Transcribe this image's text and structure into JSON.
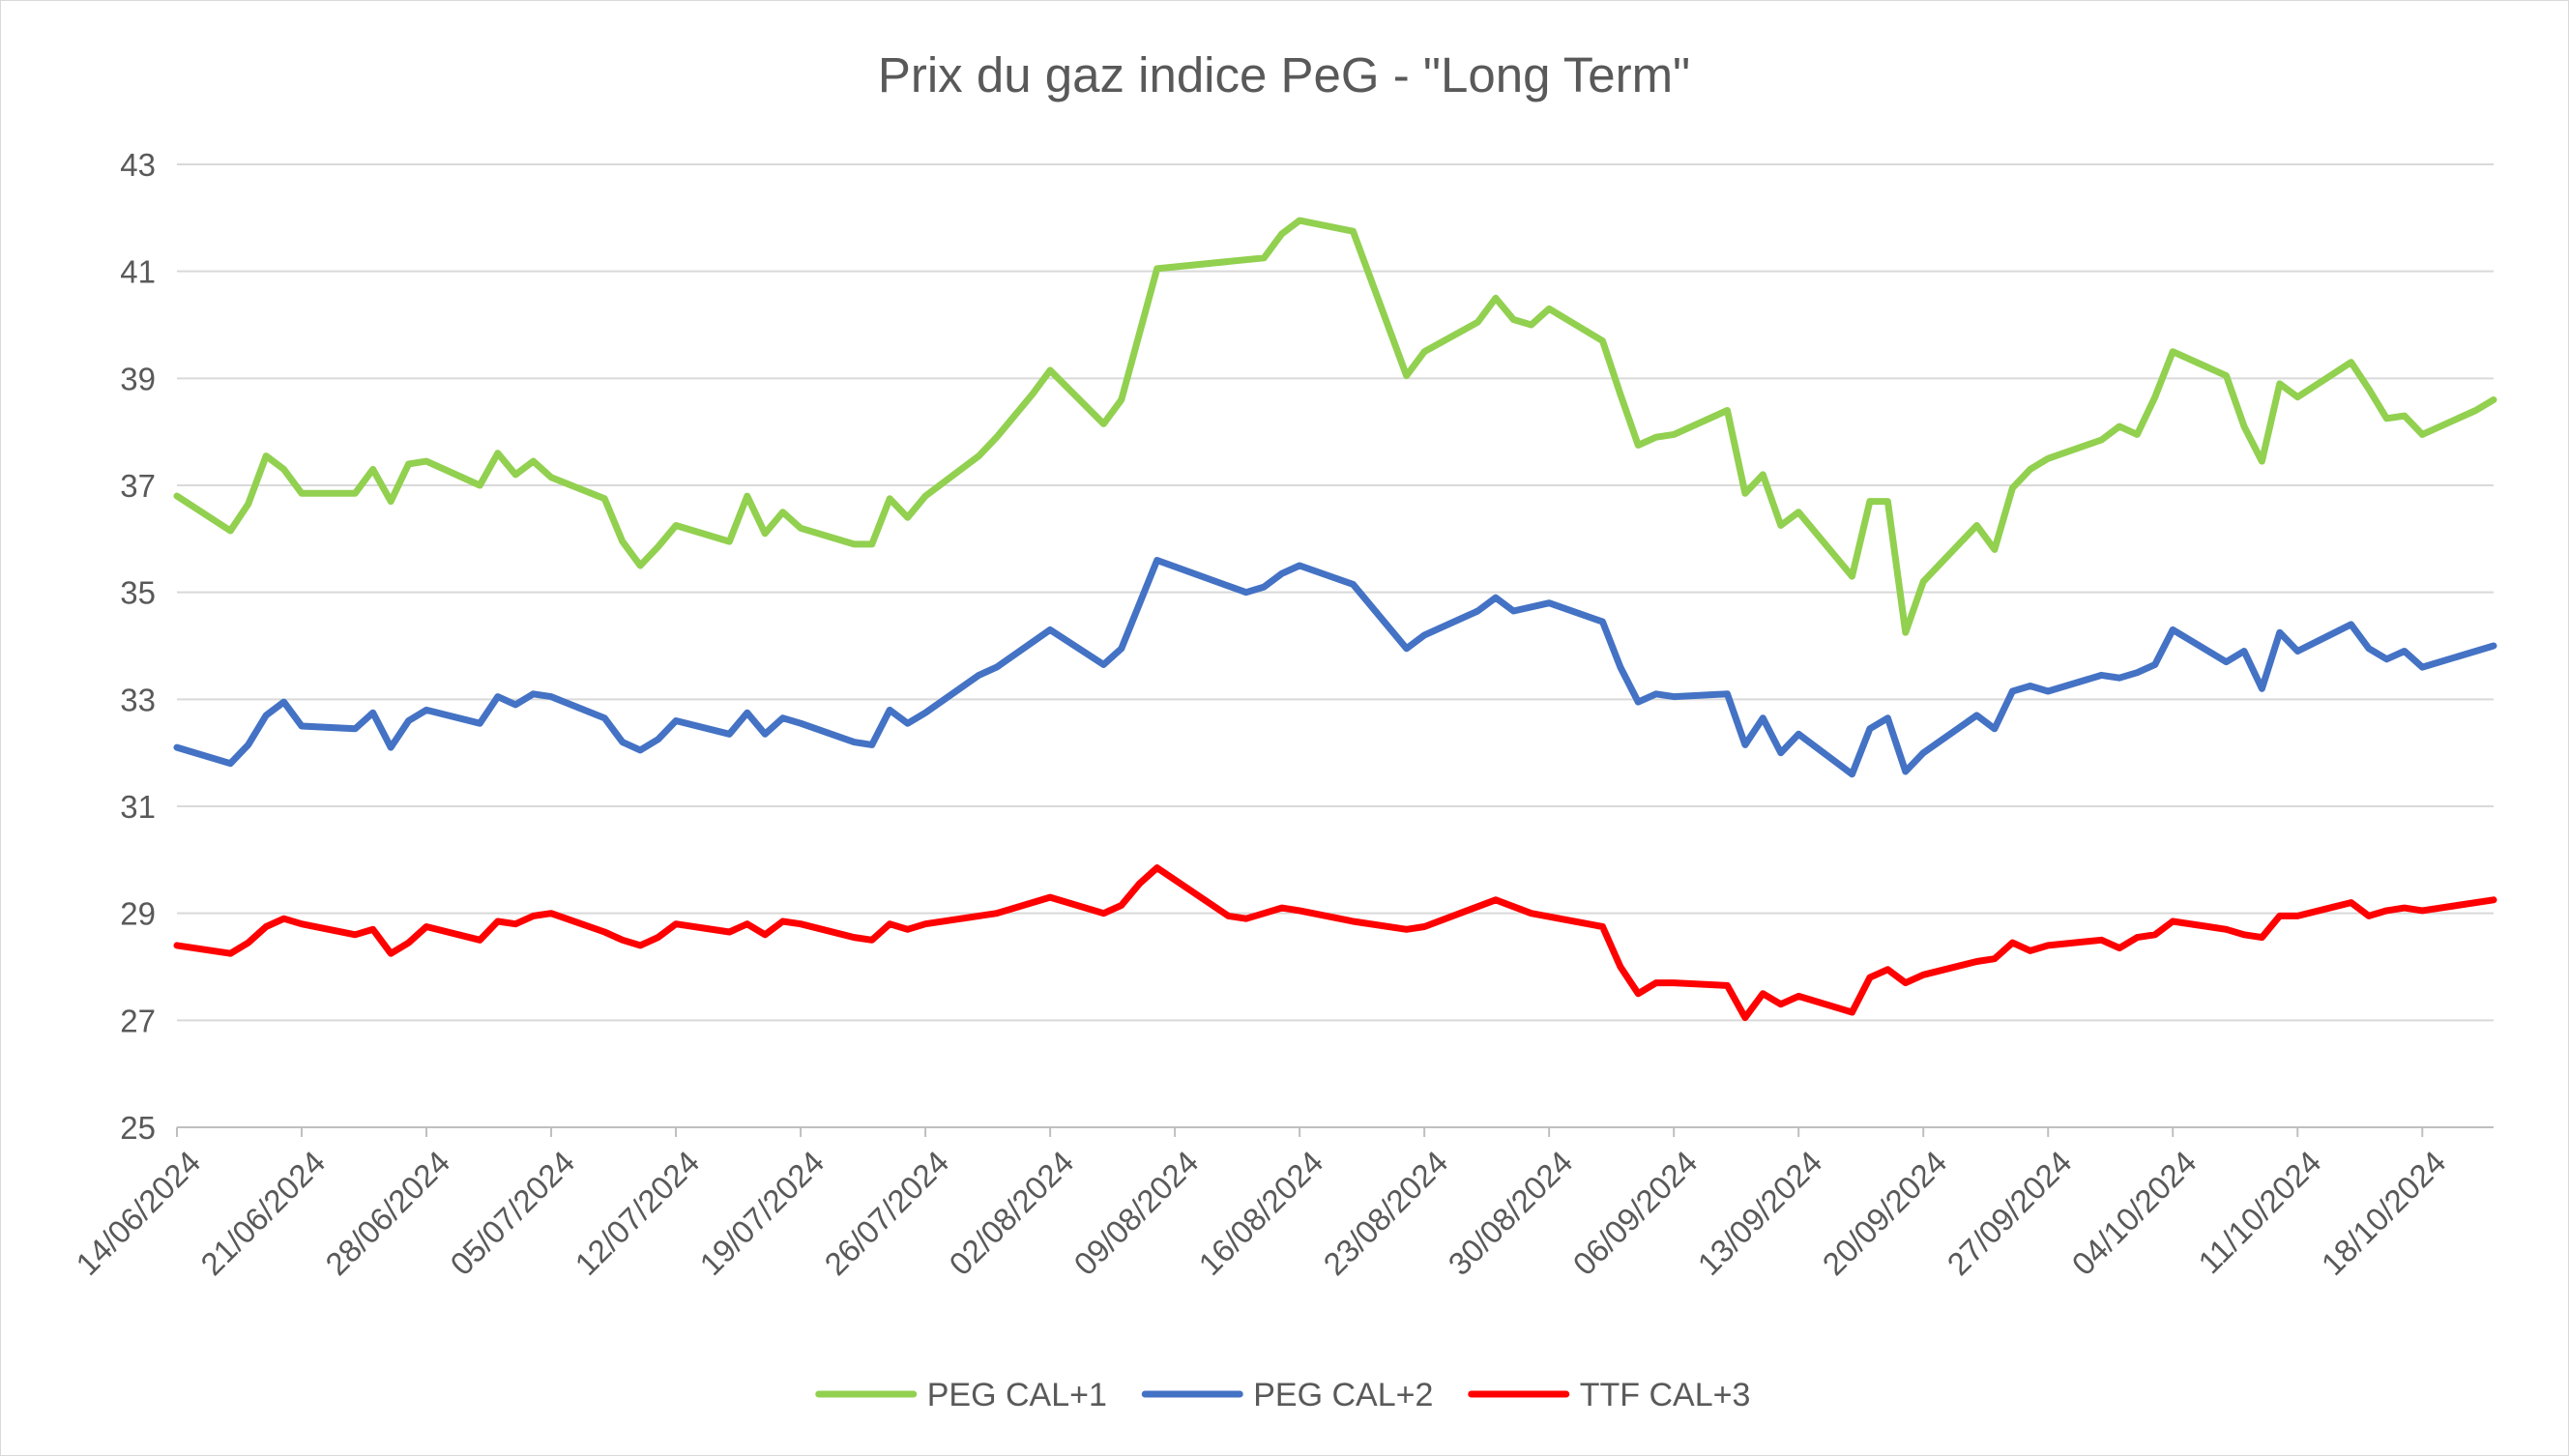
{
  "chart_data": {
    "type": "line",
    "title": "Prix du gaz indice PeG - \"Long Term\"",
    "xlabel": "",
    "ylabel": "",
    "ylim": [
      25,
      43
    ],
    "y_ticks": [
      25,
      27,
      29,
      31,
      33,
      35,
      37,
      39,
      41,
      43
    ],
    "x_ticks": [
      "14/06/2024",
      "21/06/2024",
      "28/06/2024",
      "05/07/2024",
      "12/07/2024",
      "19/07/2024",
      "26/07/2024",
      "02/08/2024",
      "09/08/2024",
      "16/08/2024",
      "23/08/2024",
      "30/08/2024",
      "06/09/2024",
      "13/09/2024",
      "20/09/2024",
      "27/09/2024",
      "04/10/2024",
      "11/10/2024",
      "18/10/2024"
    ],
    "xlim": [
      "14/06/2024",
      "22/10/2024"
    ],
    "grid": true,
    "legend_position": "bottom",
    "series": [
      {
        "name": "PEG CAL+1",
        "color": "#92d050",
        "points": [
          [
            "14/06/2024",
            36.8
          ],
          [
            "17/06/2024",
            36.15
          ],
          [
            "18/06/2024",
            36.65
          ],
          [
            "19/06/2024",
            37.55
          ],
          [
            "20/06/2024",
            37.3
          ],
          [
            "21/06/2024",
            36.85
          ],
          [
            "24/06/2024",
            36.85
          ],
          [
            "25/06/2024",
            37.3
          ],
          [
            "26/06/2024",
            36.7
          ],
          [
            "27/06/2024",
            37.4
          ],
          [
            "28/06/2024",
            37.45
          ],
          [
            "01/07/2024",
            37.0
          ],
          [
            "02/07/2024",
            37.6
          ],
          [
            "03/07/2024",
            37.2
          ],
          [
            "04/07/2024",
            37.45
          ],
          [
            "05/07/2024",
            37.15
          ],
          [
            "08/07/2024",
            36.75
          ],
          [
            "09/07/2024",
            35.95
          ],
          [
            "10/07/2024",
            35.5
          ],
          [
            "11/07/2024",
            35.85
          ],
          [
            "12/07/2024",
            36.25
          ],
          [
            "15/07/2024",
            35.95
          ],
          [
            "16/07/2024",
            36.8
          ],
          [
            "17/07/2024",
            36.1
          ],
          [
            "18/07/2024",
            36.5
          ],
          [
            "19/07/2024",
            36.2
          ],
          [
            "22/07/2024",
            35.9
          ],
          [
            "23/07/2024",
            35.9
          ],
          [
            "24/07/2024",
            36.75
          ],
          [
            "25/07/2024",
            36.4
          ],
          [
            "26/07/2024",
            36.8
          ],
          [
            "29/07/2024",
            37.55
          ],
          [
            "30/07/2024",
            37.9
          ],
          [
            "01/08/2024",
            38.7
          ],
          [
            "02/08/2024",
            39.15
          ],
          [
            "05/08/2024",
            38.15
          ],
          [
            "06/08/2024",
            38.6
          ],
          [
            "08/08/2024",
            41.05
          ],
          [
            "14/08/2024",
            41.25
          ],
          [
            "15/08/2024",
            41.7
          ],
          [
            "16/08/2024",
            41.95
          ],
          [
            "19/08/2024",
            41.75
          ],
          [
            "22/08/2024",
            39.05
          ],
          [
            "23/08/2024",
            39.5
          ],
          [
            "26/08/2024",
            40.05
          ],
          [
            "27/08/2024",
            40.5
          ],
          [
            "28/08/2024",
            40.1
          ],
          [
            "29/08/2024",
            40.0
          ],
          [
            "30/08/2024",
            40.3
          ],
          [
            "02/09/2024",
            39.7
          ],
          [
            "03/09/2024",
            38.7
          ],
          [
            "04/09/2024",
            37.75
          ],
          [
            "05/09/2024",
            37.9
          ],
          [
            "06/09/2024",
            37.95
          ],
          [
            "09/09/2024",
            38.4
          ],
          [
            "10/09/2024",
            36.85
          ],
          [
            "11/09/2024",
            37.2
          ],
          [
            "12/09/2024",
            36.25
          ],
          [
            "13/09/2024",
            36.5
          ],
          [
            "16/09/2024",
            35.3
          ],
          [
            "17/09/2024",
            36.7
          ],
          [
            "18/09/2024",
            36.7
          ],
          [
            "19/09/2024",
            34.25
          ],
          [
            "20/09/2024",
            35.2
          ],
          [
            "23/09/2024",
            36.25
          ],
          [
            "24/09/2024",
            35.8
          ],
          [
            "25/09/2024",
            36.95
          ],
          [
            "26/09/2024",
            37.3
          ],
          [
            "27/09/2024",
            37.5
          ],
          [
            "30/09/2024",
            37.85
          ],
          [
            "01/10/2024",
            38.1
          ],
          [
            "02/10/2024",
            37.95
          ],
          [
            "03/10/2024",
            38.65
          ],
          [
            "04/10/2024",
            39.5
          ],
          [
            "07/10/2024",
            39.05
          ],
          [
            "08/10/2024",
            38.1
          ],
          [
            "09/10/2024",
            37.45
          ],
          [
            "10/10/2024",
            38.9
          ],
          [
            "11/10/2024",
            38.65
          ],
          [
            "14/10/2024",
            39.3
          ],
          [
            "15/10/2024",
            38.8
          ],
          [
            "16/10/2024",
            38.25
          ],
          [
            "17/10/2024",
            38.3
          ],
          [
            "18/10/2024",
            37.95
          ],
          [
            "21/10/2024",
            38.4
          ],
          [
            "22/10/2024",
            38.6
          ]
        ]
      },
      {
        "name": "PEG CAL+2",
        "color": "#4472c4",
        "points": [
          [
            "14/06/2024",
            32.1
          ],
          [
            "17/06/2024",
            31.8
          ],
          [
            "18/06/2024",
            32.15
          ],
          [
            "19/06/2024",
            32.7
          ],
          [
            "20/06/2024",
            32.95
          ],
          [
            "21/06/2024",
            32.5
          ],
          [
            "24/06/2024",
            32.45
          ],
          [
            "25/06/2024",
            32.75
          ],
          [
            "26/06/2024",
            32.1
          ],
          [
            "27/06/2024",
            32.6
          ],
          [
            "28/06/2024",
            32.8
          ],
          [
            "01/07/2024",
            32.55
          ],
          [
            "02/07/2024",
            33.05
          ],
          [
            "03/07/2024",
            32.9
          ],
          [
            "04/07/2024",
            33.1
          ],
          [
            "05/07/2024",
            33.05
          ],
          [
            "08/07/2024",
            32.65
          ],
          [
            "09/07/2024",
            32.2
          ],
          [
            "10/07/2024",
            32.05
          ],
          [
            "11/07/2024",
            32.25
          ],
          [
            "12/07/2024",
            32.6
          ],
          [
            "15/07/2024",
            32.35
          ],
          [
            "16/07/2024",
            32.75
          ],
          [
            "17/07/2024",
            32.35
          ],
          [
            "18/07/2024",
            32.65
          ],
          [
            "19/07/2024",
            32.55
          ],
          [
            "22/07/2024",
            32.2
          ],
          [
            "23/07/2024",
            32.15
          ],
          [
            "24/07/2024",
            32.8
          ],
          [
            "25/07/2024",
            32.55
          ],
          [
            "26/07/2024",
            32.75
          ],
          [
            "29/07/2024",
            33.45
          ],
          [
            "30/07/2024",
            33.6
          ],
          [
            "02/08/2024",
            34.3
          ],
          [
            "05/08/2024",
            33.65
          ],
          [
            "06/08/2024",
            33.95
          ],
          [
            "08/08/2024",
            35.6
          ],
          [
            "13/08/2024",
            35.0
          ],
          [
            "14/08/2024",
            35.1
          ],
          [
            "15/08/2024",
            35.35
          ],
          [
            "16/08/2024",
            35.5
          ],
          [
            "19/08/2024",
            35.15
          ],
          [
            "22/08/2024",
            33.95
          ],
          [
            "23/08/2024",
            34.2
          ],
          [
            "26/08/2024",
            34.65
          ],
          [
            "27/08/2024",
            34.9
          ],
          [
            "28/08/2024",
            34.65
          ],
          [
            "30/08/2024",
            34.8
          ],
          [
            "02/09/2024",
            34.45
          ],
          [
            "03/09/2024",
            33.6
          ],
          [
            "04/09/2024",
            32.95
          ],
          [
            "05/09/2024",
            33.1
          ],
          [
            "06/09/2024",
            33.05
          ],
          [
            "09/09/2024",
            33.1
          ],
          [
            "10/09/2024",
            32.15
          ],
          [
            "11/09/2024",
            32.65
          ],
          [
            "12/09/2024",
            32.0
          ],
          [
            "13/09/2024",
            32.35
          ],
          [
            "16/09/2024",
            31.6
          ],
          [
            "17/09/2024",
            32.45
          ],
          [
            "18/09/2024",
            32.65
          ],
          [
            "19/09/2024",
            31.65
          ],
          [
            "20/09/2024",
            32.0
          ],
          [
            "23/09/2024",
            32.7
          ],
          [
            "24/09/2024",
            32.45
          ],
          [
            "25/09/2024",
            33.15
          ],
          [
            "26/09/2024",
            33.25
          ],
          [
            "27/09/2024",
            33.15
          ],
          [
            "30/09/2024",
            33.45
          ],
          [
            "01/10/2024",
            33.4
          ],
          [
            "02/10/2024",
            33.5
          ],
          [
            "03/10/2024",
            33.65
          ],
          [
            "04/10/2024",
            34.3
          ],
          [
            "07/10/2024",
            33.7
          ],
          [
            "08/10/2024",
            33.9
          ],
          [
            "09/10/2024",
            33.2
          ],
          [
            "10/10/2024",
            34.25
          ],
          [
            "11/10/2024",
            33.9
          ],
          [
            "14/10/2024",
            34.4
          ],
          [
            "15/10/2024",
            33.95
          ],
          [
            "16/10/2024",
            33.75
          ],
          [
            "17/10/2024",
            33.9
          ],
          [
            "18/10/2024",
            33.6
          ],
          [
            "22/10/2024",
            34.0
          ]
        ]
      },
      {
        "name": "TTF CAL+3",
        "color": "#ff0000",
        "points": [
          [
            "14/06/2024",
            28.4
          ],
          [
            "17/06/2024",
            28.25
          ],
          [
            "18/06/2024",
            28.45
          ],
          [
            "19/06/2024",
            28.75
          ],
          [
            "20/06/2024",
            28.9
          ],
          [
            "21/06/2024",
            28.8
          ],
          [
            "24/06/2024",
            28.6
          ],
          [
            "25/06/2024",
            28.7
          ],
          [
            "26/06/2024",
            28.25
          ],
          [
            "27/06/2024",
            28.45
          ],
          [
            "28/06/2024",
            28.75
          ],
          [
            "01/07/2024",
            28.5
          ],
          [
            "02/07/2024",
            28.85
          ],
          [
            "03/07/2024",
            28.8
          ],
          [
            "04/07/2024",
            28.95
          ],
          [
            "05/07/2024",
            29.0
          ],
          [
            "08/07/2024",
            28.65
          ],
          [
            "09/07/2024",
            28.5
          ],
          [
            "10/07/2024",
            28.4
          ],
          [
            "11/07/2024",
            28.55
          ],
          [
            "12/07/2024",
            28.8
          ],
          [
            "15/07/2024",
            28.65
          ],
          [
            "16/07/2024",
            28.8
          ],
          [
            "17/07/2024",
            28.6
          ],
          [
            "18/07/2024",
            28.85
          ],
          [
            "19/07/2024",
            28.8
          ],
          [
            "22/07/2024",
            28.55
          ],
          [
            "23/07/2024",
            28.5
          ],
          [
            "24/07/2024",
            28.8
          ],
          [
            "25/07/2024",
            28.7
          ],
          [
            "26/07/2024",
            28.8
          ],
          [
            "29/07/2024",
            28.95
          ],
          [
            "30/07/2024",
            29.0
          ],
          [
            "02/08/2024",
            29.3
          ],
          [
            "05/08/2024",
            29.0
          ],
          [
            "06/08/2024",
            29.15
          ],
          [
            "07/08/2024",
            29.55
          ],
          [
            "08/08/2024",
            29.85
          ],
          [
            "12/08/2024",
            28.95
          ],
          [
            "13/08/2024",
            28.9
          ],
          [
            "14/08/2024",
            29.0
          ],
          [
            "15/08/2024",
            29.1
          ],
          [
            "16/08/2024",
            29.05
          ],
          [
            "19/08/2024",
            28.85
          ],
          [
            "22/08/2024",
            28.7
          ],
          [
            "23/08/2024",
            28.75
          ],
          [
            "27/08/2024",
            29.25
          ],
          [
            "29/08/2024",
            29.0
          ],
          [
            "02/09/2024",
            28.75
          ],
          [
            "03/09/2024",
            28.0
          ],
          [
            "04/09/2024",
            27.5
          ],
          [
            "05/09/2024",
            27.7
          ],
          [
            "06/09/2024",
            27.7
          ],
          [
            "09/09/2024",
            27.65
          ],
          [
            "10/09/2024",
            27.05
          ],
          [
            "11/09/2024",
            27.5
          ],
          [
            "12/09/2024",
            27.3
          ],
          [
            "13/09/2024",
            27.45
          ],
          [
            "16/09/2024",
            27.15
          ],
          [
            "17/09/2024",
            27.8
          ],
          [
            "18/09/2024",
            27.95
          ],
          [
            "19/09/2024",
            27.7
          ],
          [
            "20/09/2024",
            27.85
          ],
          [
            "23/09/2024",
            28.1
          ],
          [
            "24/09/2024",
            28.15
          ],
          [
            "25/09/2024",
            28.45
          ],
          [
            "26/09/2024",
            28.3
          ],
          [
            "27/09/2024",
            28.4
          ],
          [
            "30/09/2024",
            28.5
          ],
          [
            "01/10/2024",
            28.35
          ],
          [
            "02/10/2024",
            28.55
          ],
          [
            "03/10/2024",
            28.6
          ],
          [
            "04/10/2024",
            28.85
          ],
          [
            "07/10/2024",
            28.7
          ],
          [
            "08/10/2024",
            28.6
          ],
          [
            "09/10/2024",
            28.55
          ],
          [
            "10/10/2024",
            28.95
          ],
          [
            "11/10/2024",
            28.95
          ],
          [
            "14/10/2024",
            29.2
          ],
          [
            "15/10/2024",
            28.95
          ],
          [
            "16/10/2024",
            29.05
          ],
          [
            "17/10/2024",
            29.1
          ],
          [
            "18/10/2024",
            29.05
          ],
          [
            "22/10/2024",
            29.25
          ]
        ]
      }
    ]
  }
}
